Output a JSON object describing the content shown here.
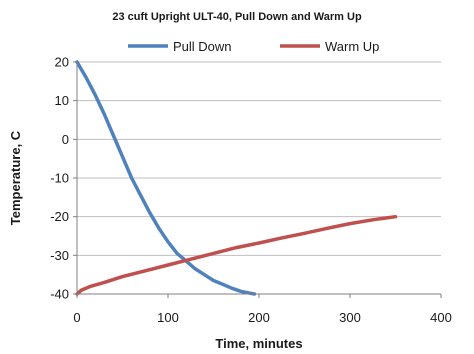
{
  "chart_data": {
    "type": "line",
    "title": "23 cuft Upright ULT-40, Pull Down and Warm Up",
    "xlabel": "Time, minutes",
    "ylabel": "Temperature, C",
    "xlim": [
      0,
      400
    ],
    "ylim": [
      -40,
      20
    ],
    "xticks": [
      0,
      100,
      200,
      300,
      400
    ],
    "yticks": [
      20,
      10,
      0,
      -10,
      -20,
      -30,
      -40
    ],
    "grid": "horizontal",
    "legend_position": "top",
    "series": [
      {
        "name": "Pull Down",
        "color": "#4f81bd",
        "x": [
          0,
          10,
          20,
          30,
          40,
          50,
          60,
          70,
          80,
          90,
          100,
          110,
          120,
          130,
          140,
          150,
          160,
          170,
          180,
          190,
          195
        ],
        "y": [
          20,
          16,
          11.5,
          6.5,
          1,
          -4.5,
          -10,
          -14.5,
          -19,
          -23,
          -26.5,
          -29.5,
          -31.5,
          -33.5,
          -35,
          -36.5,
          -37.5,
          -38.5,
          -39.3,
          -39.8,
          -40
        ]
      },
      {
        "name": "Warm Up",
        "color": "#c0504d",
        "x": [
          0,
          5,
          15,
          30,
          50,
          75,
          100,
          125,
          150,
          175,
          200,
          225,
          250,
          275,
          300,
          325,
          350
        ],
        "y": [
          -40,
          -39,
          -38,
          -37,
          -35.5,
          -34,
          -32.5,
          -31,
          -29.5,
          -28,
          -26.8,
          -25.5,
          -24.3,
          -23,
          -21.8,
          -20.8,
          -20
        ]
      }
    ]
  }
}
